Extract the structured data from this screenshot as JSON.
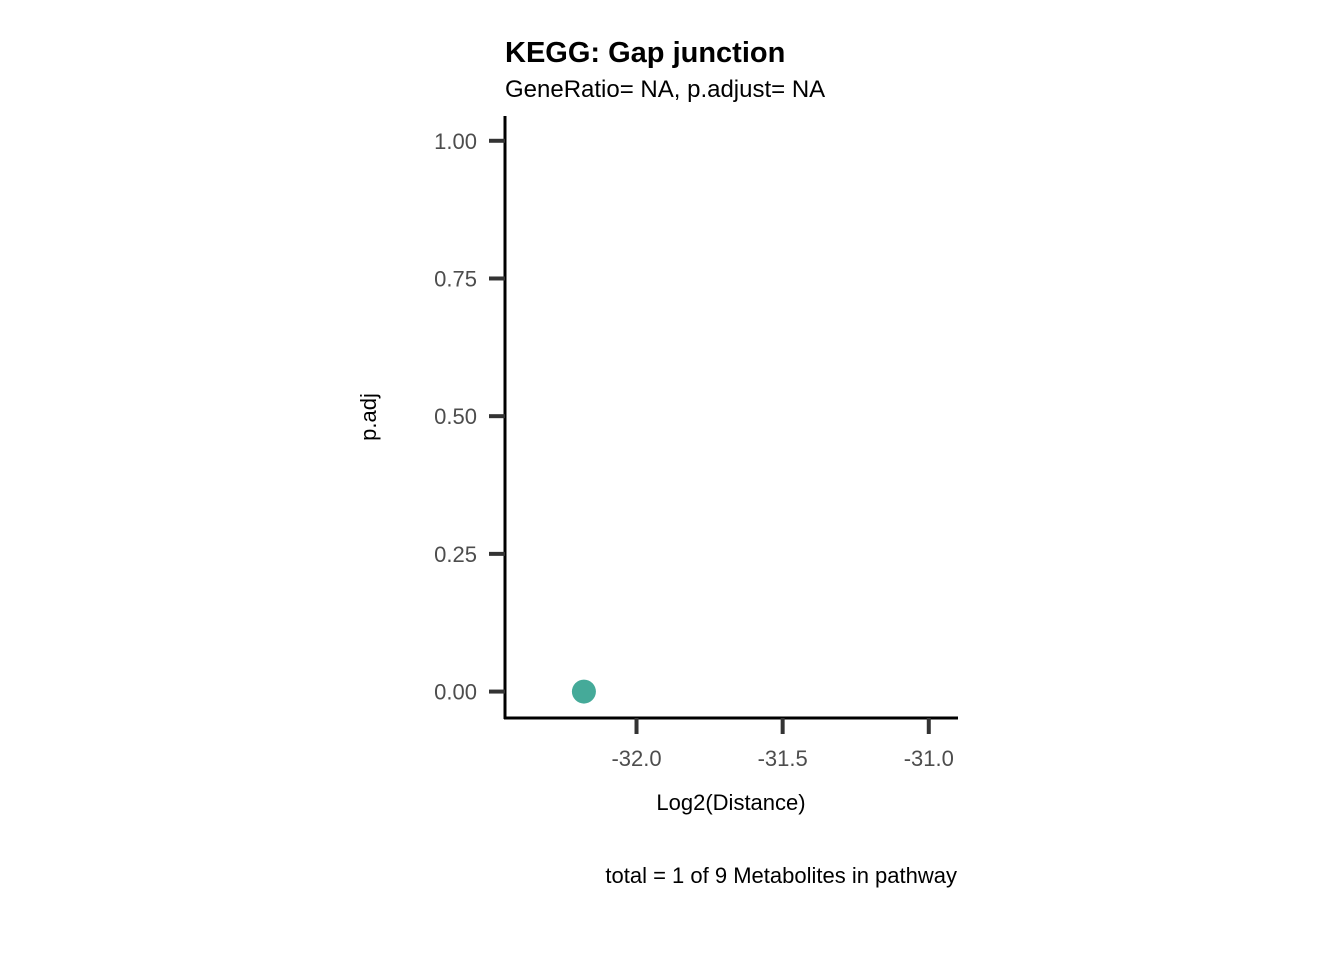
{
  "chart_data": {
    "type": "scatter",
    "title": "KEGG: Gap junction",
    "subtitle": "GeneRatio= NA, p.adjust= NA",
    "xlabel": "Log2(Distance)",
    "ylabel": "p.adj",
    "caption": "total = 1 of 9 Metabolites in pathway",
    "xlim": [
      -32.45,
      -30.9
    ],
    "ylim": [
      -0.048,
      1.045
    ],
    "x_ticks": [
      {
        "value": -32.0,
        "label": "-32.0"
      },
      {
        "value": -31.5,
        "label": "-31.5"
      },
      {
        "value": -31.0,
        "label": "-31.0"
      }
    ],
    "y_ticks": [
      {
        "value": 0.0,
        "label": "0.00"
      },
      {
        "value": 0.25,
        "label": "0.25"
      },
      {
        "value": 0.5,
        "label": "0.50"
      },
      {
        "value": 0.75,
        "label": "0.75"
      },
      {
        "value": 1.0,
        "label": "1.00"
      }
    ],
    "points": [
      {
        "x": -32.18,
        "y": 0.0,
        "color": "#45aa99"
      }
    ],
    "grid": false,
    "legend": "none"
  }
}
